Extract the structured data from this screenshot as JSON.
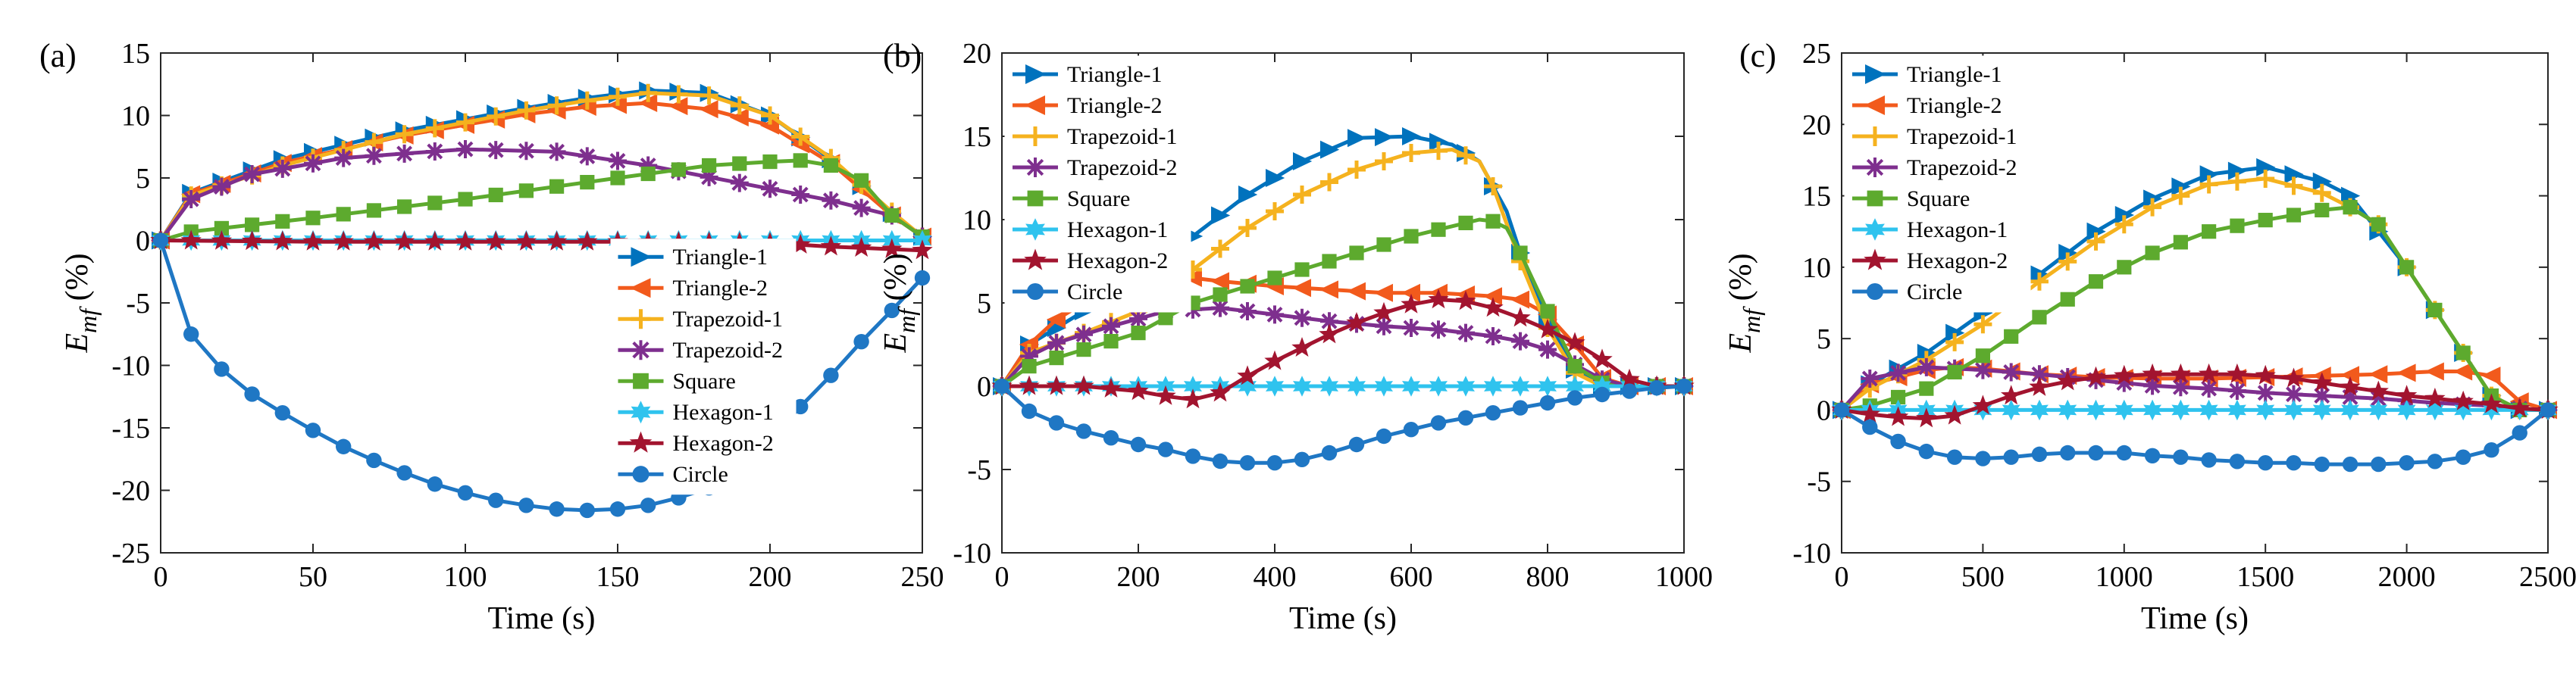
{
  "series_styles": [
    {
      "name": "Triangle-1",
      "color": "#0072BD",
      "marker": "triangle-right"
    },
    {
      "name": "Triangle-2",
      "color": "#F25A1C",
      "marker": "triangle-left"
    },
    {
      "name": "Trapezoid-1",
      "color": "#F5B21E",
      "marker": "plus"
    },
    {
      "name": "Trapezoid-2",
      "color": "#7E2F8E",
      "marker": "asterisk"
    },
    {
      "name": "Square",
      "color": "#5DAA2E",
      "marker": "square"
    },
    {
      "name": "Hexagon-1",
      "color": "#2FC3EE",
      "marker": "hexagram"
    },
    {
      "name": "Hexagon-2",
      "color": "#A2142F",
      "marker": "pentagram"
    },
    {
      "name": "Circle",
      "color": "#1F77C4",
      "marker": "circle"
    }
  ],
  "chart_data": [
    {
      "panel_label": "(a)",
      "type": "line",
      "xlabel": "Time (s)",
      "ylabel_main": "E",
      "ylabel_sub": "mf",
      "ylabel_unit": " (%)",
      "xlim": [
        0,
        250
      ],
      "ylim": [
        -25,
        15
      ],
      "xticks": [
        0,
        50,
        100,
        150,
        200,
        250
      ],
      "yticks": [
        -25,
        -20,
        -15,
        -10,
        -5,
        0,
        5,
        10,
        15
      ],
      "xtick_labels": [
        "0",
        "50",
        "100",
        "150",
        "200",
        "250"
      ],
      "ytick_labels": [
        "-25",
        "-20",
        "-15",
        "-10",
        "-5",
        "0",
        "5",
        "10",
        "15"
      ],
      "legend_position": "center-right",
      "marker_step": 10,
      "series": [
        {
          "name": "Triangle-1",
          "x": [
            0,
            10,
            40,
            80,
            120,
            140,
            160,
            180,
            200,
            220,
            240,
            250
          ],
          "y": [
            0,
            3.8,
            6.5,
            8.8,
            10.6,
            11.4,
            12.0,
            11.8,
            10.0,
            6.5,
            2.2,
            0.3
          ]
        },
        {
          "name": "Triangle-2",
          "x": [
            0,
            10,
            40,
            80,
            120,
            140,
            160,
            180,
            200,
            220,
            240,
            250
          ],
          "y": [
            0,
            3.7,
            6.2,
            8.4,
            10.1,
            10.7,
            11.0,
            10.5,
            9.2,
            6.2,
            2.0,
            0.3
          ]
        },
        {
          "name": "Trapezoid-1",
          "x": [
            0,
            10,
            40,
            80,
            120,
            140,
            160,
            180,
            200,
            220,
            240,
            250
          ],
          "y": [
            0,
            3.6,
            6.0,
            8.5,
            10.4,
            11.2,
            11.8,
            11.6,
            10.0,
            6.6,
            2.3,
            0.3
          ]
        },
        {
          "name": "Trapezoid-2",
          "x": [
            0,
            10,
            30,
            60,
            100,
            130,
            160,
            190,
            220,
            240,
            250
          ],
          "y": [
            0,
            3.3,
            5.3,
            6.6,
            7.3,
            7.1,
            6.0,
            4.6,
            3.2,
            2.0,
            0.3
          ]
        },
        {
          "name": "Square",
          "x": [
            0,
            10,
            50,
            100,
            150,
            180,
            200,
            210,
            220,
            230,
            240,
            250
          ],
          "y": [
            0,
            0.7,
            1.8,
            3.3,
            5.0,
            6.0,
            6.3,
            6.4,
            6.0,
            4.8,
            2.0,
            0.3
          ]
        },
        {
          "name": "Hexagon-1",
          "x": [
            0,
            50,
            100,
            150,
            200,
            250
          ],
          "y": [
            0,
            0,
            0,
            0,
            0,
            0
          ]
        },
        {
          "name": "Hexagon-2",
          "x": [
            0,
            50,
            100,
            150,
            200,
            220,
            250
          ],
          "y": [
            0,
            -0.1,
            -0.1,
            -0.1,
            -0.2,
            -0.5,
            -0.8
          ]
        },
        {
          "name": "Circle",
          "x": [
            0,
            10,
            20,
            30,
            40,
            50,
            60,
            70,
            80,
            90,
            100,
            110,
            120,
            130,
            140,
            150,
            160,
            170,
            180,
            190,
            200,
            210,
            220,
            230,
            240,
            250
          ],
          "y": [
            0,
            -7.5,
            -10.3,
            -12.3,
            -13.8,
            -15.2,
            -16.5,
            -17.6,
            -18.6,
            -19.5,
            -20.2,
            -20.8,
            -21.2,
            -21.5,
            -21.6,
            -21.5,
            -21.2,
            -20.6,
            -19.8,
            -18.2,
            -15.9,
            -13.3,
            -10.8,
            -8.1,
            -5.6,
            -3.0
          ]
        }
      ]
    },
    {
      "panel_label": "(b)",
      "type": "line",
      "xlabel": "Time (s)",
      "ylabel_main": "E",
      "ylabel_sub": "mf",
      "ylabel_unit": " (%)",
      "xlim": [
        0,
        1000
      ],
      "ylim": [
        -10,
        20
      ],
      "xticks": [
        0,
        200,
        400,
        600,
        800,
        1000
      ],
      "yticks": [
        -10,
        -5,
        0,
        5,
        10,
        15,
        20
      ],
      "xtick_labels": [
        "0",
        "200",
        "400",
        "600",
        "800",
        "1000"
      ],
      "ytick_labels": [
        "-10",
        "-5",
        "0",
        "5",
        "10",
        "15",
        "20"
      ],
      "legend_position": "top-left",
      "marker_step": 40,
      "series": [
        {
          "name": "Triangle-1",
          "x": [
            0,
            40,
            120,
            200,
            280,
            360,
            440,
            520,
            600,
            660,
            700,
            740,
            760,
            800,
            840,
            880,
            900,
            1000
          ],
          "y": [
            0,
            2.5,
            4.5,
            6.5,
            9.0,
            11.5,
            13.5,
            14.9,
            15.0,
            14.5,
            13.5,
            10.5,
            8.0,
            4.0,
            1.0,
            0,
            0,
            0
          ]
        },
        {
          "name": "Triangle-2",
          "x": [
            0,
            40,
            80,
            120,
            160,
            200,
            240,
            280,
            320,
            400,
            480,
            560,
            640,
            720,
            760,
            800,
            840,
            880,
            920,
            1000
          ],
          "y": [
            0,
            2.5,
            4.0,
            5.0,
            5.8,
            6.3,
            6.5,
            6.5,
            6.3,
            6.0,
            5.8,
            5.6,
            5.6,
            5.4,
            5.2,
            4.3,
            2.5,
            0.5,
            0,
            0
          ]
        },
        {
          "name": "Trapezoid-1",
          "x": [
            0,
            40,
            120,
            200,
            280,
            360,
            440,
            520,
            600,
            660,
            700,
            720,
            760,
            800,
            840,
            880,
            900,
            1000
          ],
          "y": [
            0,
            2.0,
            3.2,
            4.5,
            7.0,
            9.5,
            11.5,
            13.0,
            14.0,
            14.2,
            13.5,
            12.0,
            7.5,
            3.5,
            0.8,
            0,
            0,
            0
          ]
        },
        {
          "name": "Trapezoid-2",
          "x": [
            0,
            40,
            80,
            160,
            240,
            320,
            400,
            480,
            560,
            640,
            720,
            760,
            800,
            840,
            880,
            920,
            1000
          ],
          "y": [
            0,
            1.8,
            2.6,
            3.6,
            4.5,
            4.7,
            4.3,
            3.9,
            3.6,
            3.4,
            3.0,
            2.7,
            2.2,
            1.3,
            0.4,
            0,
            0
          ]
        },
        {
          "name": "Square",
          "x": [
            0,
            40,
            120,
            200,
            280,
            360,
            440,
            520,
            600,
            660,
            700,
            720,
            740,
            760,
            800,
            840,
            880,
            900,
            1000
          ],
          "y": [
            0,
            1.2,
            2.2,
            3.2,
            5.0,
            6.0,
            7.0,
            8.0,
            9.0,
            9.6,
            10.0,
            9.9,
            9.5,
            8.0,
            4.5,
            1.2,
            0.2,
            0,
            0
          ]
        },
        {
          "name": "Hexagon-1",
          "x": [
            0,
            200,
            400,
            600,
            800,
            1000
          ],
          "y": [
            0,
            0,
            0,
            0,
            0,
            0
          ]
        },
        {
          "name": "Hexagon-2",
          "x": [
            0,
            120,
            200,
            240,
            280,
            320,
            360,
            400,
            440,
            480,
            520,
            560,
            600,
            640,
            680,
            720,
            760,
            800,
            840,
            880,
            920,
            960,
            1000
          ],
          "y": [
            0,
            0,
            -0.3,
            -0.6,
            -0.8,
            -0.4,
            0.6,
            1.5,
            2.3,
            3.1,
            3.8,
            4.4,
            4.9,
            5.2,
            5.1,
            4.7,
            4.1,
            3.4,
            2.6,
            1.6,
            0.4,
            0,
            0
          ]
        },
        {
          "name": "Circle",
          "x": [
            0,
            40,
            80,
            120,
            160,
            200,
            240,
            280,
            320,
            360,
            400,
            440,
            480,
            520,
            560,
            600,
            640,
            680,
            720,
            760,
            800,
            840,
            880,
            920,
            960,
            1000
          ],
          "y": [
            0,
            -1.5,
            -2.2,
            -2.7,
            -3.1,
            -3.5,
            -3.8,
            -4.2,
            -4.5,
            -4.6,
            -4.6,
            -4.4,
            -4.0,
            -3.5,
            -3.0,
            -2.6,
            -2.2,
            -1.9,
            -1.6,
            -1.3,
            -1.0,
            -0.7,
            -0.5,
            -0.3,
            -0.1,
            0
          ]
        }
      ]
    },
    {
      "panel_label": "(c)",
      "type": "line",
      "xlabel": "Time (s)",
      "ylabel_main": "E",
      "ylabel_sub": "mf",
      "ylabel_unit": " (%)",
      "xlim": [
        0,
        2500
      ],
      "ylim": [
        -10,
        25
      ],
      "xticks": [
        0,
        500,
        1000,
        1500,
        2000,
        2500
      ],
      "yticks": [
        -10,
        -5,
        0,
        5,
        10,
        15,
        20,
        25
      ],
      "xtick_labels": [
        "0",
        "500",
        "1000",
        "1500",
        "2000",
        "2500"
      ],
      "ytick_labels": [
        "-10",
        "-5",
        "0",
        "5",
        "10",
        "15",
        "20",
        "25"
      ],
      "legend_position": "top-left",
      "marker_step": 100,
      "series": [
        {
          "name": "Triangle-1",
          "x": [
            0,
            100,
            300,
            500,
            700,
            900,
            1100,
            1300,
            1500,
            1700,
            1800,
            1900,
            2000,
            2100,
            2200,
            2300,
            2400,
            2500
          ],
          "y": [
            0,
            1.8,
            4.0,
            6.8,
            9.5,
            12.5,
            14.8,
            16.5,
            17.0,
            16.0,
            15.0,
            12.5,
            10.0,
            7.0,
            4.0,
            1.0,
            0,
            0
          ]
        },
        {
          "name": "Triangle-2",
          "x": [
            0,
            100,
            200,
            300,
            400,
            500,
            700,
            900,
            1100,
            1300,
            1500,
            1700,
            1900,
            2100,
            2200,
            2300,
            2400,
            2500
          ],
          "y": [
            0,
            1.8,
            2.3,
            2.8,
            3.0,
            2.9,
            2.5,
            2.3,
            2.2,
            2.2,
            2.3,
            2.4,
            2.5,
            2.7,
            2.7,
            2.4,
            0.6,
            0
          ]
        },
        {
          "name": "Trapezoid-1",
          "x": [
            0,
            100,
            300,
            500,
            700,
            900,
            1100,
            1300,
            1500,
            1700,
            1800,
            1900,
            2000,
            2100,
            2200,
            2300,
            2400,
            2500
          ],
          "y": [
            0,
            1.5,
            3.5,
            6.0,
            9.0,
            11.8,
            14.2,
            15.8,
            16.2,
            15.2,
            14.2,
            13.0,
            10.0,
            7.0,
            4.0,
            1.0,
            0,
            0
          ]
        },
        {
          "name": "Trapezoid-2",
          "x": [
            0,
            100,
            300,
            500,
            700,
            900,
            1100,
            1300,
            1500,
            1700,
            1900,
            2100,
            2300,
            2400,
            2500
          ],
          "y": [
            0,
            2.2,
            3.0,
            2.8,
            2.5,
            2.1,
            1.7,
            1.5,
            1.2,
            1.0,
            0.8,
            0.5,
            0.3,
            0.1,
            0
          ]
        },
        {
          "name": "Square",
          "x": [
            0,
            100,
            300,
            500,
            700,
            900,
            1100,
            1300,
            1500,
            1700,
            1800,
            1900,
            2000,
            2100,
            2200,
            2300,
            2400,
            2500
          ],
          "y": [
            0,
            0.3,
            1.5,
            3.8,
            6.5,
            9.0,
            11.0,
            12.5,
            13.3,
            14.0,
            14.2,
            13.0,
            10.0,
            7.0,
            4.0,
            1.0,
            0,
            0
          ]
        },
        {
          "name": "Hexagon-1",
          "x": [
            0,
            500,
            1000,
            1500,
            2000,
            2500
          ],
          "y": [
            0,
            0,
            0,
            0,
            0,
            0
          ]
        },
        {
          "name": "Hexagon-2",
          "x": [
            0,
            100,
            200,
            300,
            400,
            500,
            600,
            700,
            800,
            900,
            1000,
            1100,
            1200,
            1300,
            1400,
            1500,
            1600,
            1700,
            1800,
            1900,
            2000,
            2100,
            2200,
            2300,
            2400,
            2500
          ],
          "y": [
            0,
            -0.3,
            -0.5,
            -0.6,
            -0.4,
            0.3,
            1.0,
            1.6,
            2.0,
            2.3,
            2.4,
            2.5,
            2.5,
            2.5,
            2.5,
            2.4,
            2.2,
            1.9,
            1.6,
            1.3,
            1.0,
            0.8,
            0.6,
            0.4,
            0.1,
            0
          ]
        },
        {
          "name": "Circle",
          "x": [
            0,
            100,
            200,
            300,
            400,
            500,
            600,
            700,
            800,
            900,
            1000,
            1100,
            1200,
            1300,
            1400,
            1500,
            1600,
            1700,
            1800,
            1900,
            2000,
            2100,
            2200,
            2300,
            2400,
            2500
          ],
          "y": [
            0,
            -1.2,
            -2.2,
            -2.9,
            -3.3,
            -3.4,
            -3.3,
            -3.1,
            -3.0,
            -3.0,
            -3.0,
            -3.2,
            -3.3,
            -3.5,
            -3.6,
            -3.7,
            -3.7,
            -3.8,
            -3.8,
            -3.8,
            -3.7,
            -3.6,
            -3.3,
            -2.8,
            -1.6,
            0
          ]
        }
      ]
    }
  ]
}
